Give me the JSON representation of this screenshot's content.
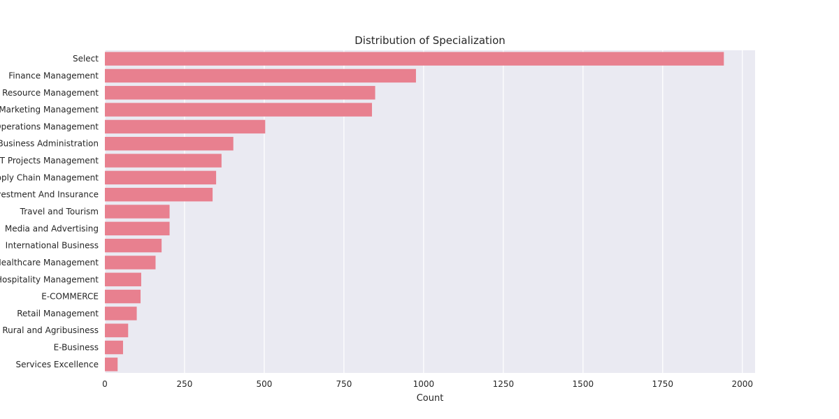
{
  "chart_data": {
    "type": "bar",
    "orientation": "horizontal",
    "title": "Distribution of Specialization",
    "xlabel": "Count",
    "ylabel": "",
    "xlim": [
      0,
      2040
    ],
    "xticks": [
      0,
      250,
      500,
      750,
      1000,
      1250,
      1500,
      1750,
      2000
    ],
    "grid": true,
    "bar_color": "#e8808f",
    "background_color": "#eaeaf2",
    "categories": [
      "Select",
      "Finance Management",
      "Human Resource Management",
      "Marketing Management",
      "Operations Management",
      "Business Administration",
      "IT Projects Management",
      "Supply Chain Management",
      "Banking, Investment And Insurance",
      "Travel and Tourism",
      "Media and Advertising",
      "International Business",
      "Healthcare Management",
      "Hospitality Management",
      "E-COMMERCE",
      "Retail Management",
      "Rural and Agribusiness",
      "E-Business",
      "Services Excellence"
    ],
    "values": [
      1942,
      976,
      848,
      838,
      503,
      403,
      366,
      349,
      338,
      203,
      203,
      178,
      159,
      114,
      112,
      100,
      73,
      57,
      40
    ]
  }
}
